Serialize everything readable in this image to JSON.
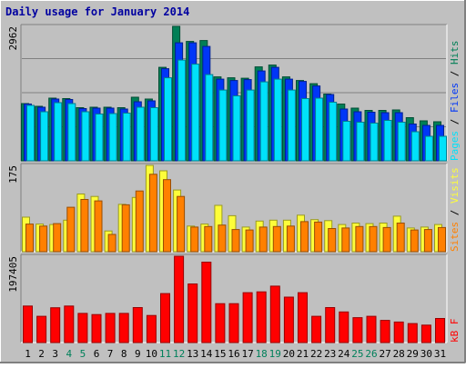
{
  "chart_data": {
    "type": "bar",
    "title": "Daily usage for January 2014",
    "categories": [
      "1",
      "2",
      "3",
      "4",
      "5",
      "6",
      "7",
      "8",
      "9",
      "10",
      "11",
      "12",
      "13",
      "14",
      "15",
      "16",
      "17",
      "18",
      "19",
      "20",
      "21",
      "22",
      "23",
      "24",
      "25",
      "26",
      "27",
      "28",
      "29",
      "30",
      "31"
    ],
    "weekend_days": [
      "4",
      "5",
      "11",
      "12",
      "18",
      "19",
      "25",
      "26"
    ],
    "panels": [
      {
        "id": "hits-files-pages",
        "ymax_label": "2962",
        "ylim": [
          0,
          2962
        ],
        "right_label": [
          "Pages",
          "Files",
          "Hits"
        ],
        "series": [
          {
            "name": "Hits",
            "color": "#007f56",
            "values": [
              1260,
              1200,
              1380,
              1370,
              1170,
              1180,
              1180,
              1170,
              1400,
              1360,
              2060,
              2962,
              2630,
              2650,
              1850,
              1830,
              1820,
              2070,
              2110,
              1850,
              1770,
              1700,
              1470,
              1250,
              1160,
              1110,
              1110,
              1120,
              950,
              880,
              860
            ]
          },
          {
            "name": "Files",
            "color": "#0036f7",
            "values": [
              1250,
              1180,
              1360,
              1350,
              1150,
              1160,
              1160,
              1140,
              1300,
              1320,
              2030,
              2600,
              2600,
              2520,
              1800,
              1770,
              1790,
              1980,
              2060,
              1800,
              1750,
              1650,
              1460,
              1140,
              1080,
              1070,
              1060,
              1060,
              810,
              780,
              780
            ]
          },
          {
            "name": "Pages",
            "color": "#00e1fa",
            "values": [
              1220,
              1080,
              1280,
              1260,
              1080,
              1030,
              1040,
              1050,
              1180,
              1170,
              1830,
              2220,
              2130,
              1900,
              1560,
              1430,
              1560,
              1740,
              1800,
              1560,
              1370,
              1380,
              1290,
              870,
              850,
              830,
              890,
              850,
              640,
              540,
              540
            ]
          }
        ]
      },
      {
        "id": "visits-sites",
        "ymax_label": "175",
        "ylim": [
          0,
          175
        ],
        "right_label": [
          "Sites",
          "Visits"
        ],
        "series": [
          {
            "name": "Visits",
            "color": "#fdfd3a",
            "values": [
              70,
              56,
              55,
              64,
              117,
              112,
              42,
              96,
              110,
              175,
              164,
              125,
              52,
              56,
              94,
              73,
              50,
              62,
              64,
              64,
              74,
              65,
              63,
              55,
              58,
              57,
              58,
              72,
              48,
              50,
              55
            ]
          },
          {
            "name": "Sites",
            "color": "#ff8000",
            "values": [
              56,
              52,
              57,
              90,
              106,
              103,
              35,
              95,
              123,
              157,
              146,
              112,
              50,
              51,
              54,
              45,
              44,
              50,
              51,
              52,
              61,
              60,
              47,
              48,
              51,
              51,
              49,
              58,
              44,
              45,
              49
            ]
          }
        ]
      },
      {
        "id": "kbytes",
        "ymax_label": "197405",
        "ylim": [
          0,
          197405
        ],
        "right_label": [
          "kB F"
        ],
        "series": [
          {
            "name": "kB F",
            "color": "#ff0000",
            "values": [
              83500,
              60000,
              79500,
              83500,
              66700,
              64000,
              66700,
              66700,
              80000,
              62000,
              112000,
              197405,
              134000,
              184000,
              89000,
              89000,
              114000,
              116000,
              129000,
              104000,
              114000,
              60000,
              80000,
              70000,
              57000,
              60000,
              50700,
              47000,
              43400,
              40000,
              55000
            ]
          }
        ]
      }
    ]
  }
}
